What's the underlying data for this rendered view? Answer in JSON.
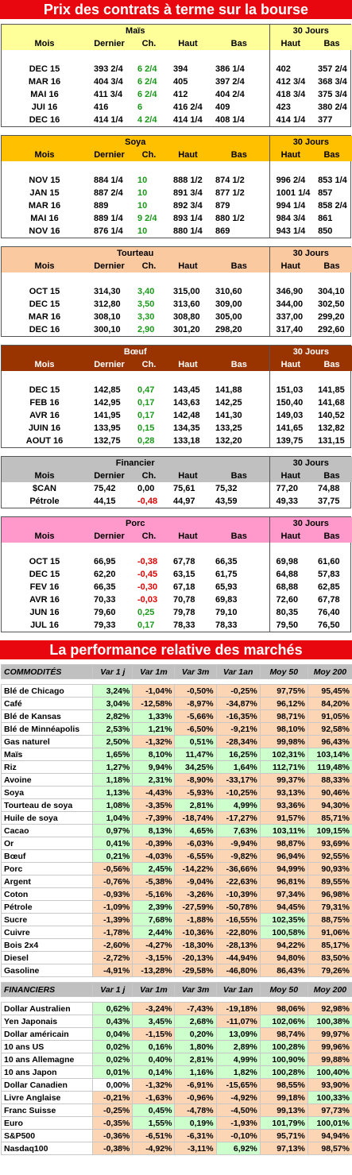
{
  "header": {
    "title": "Prix des contrats à terme sur la bourse"
  },
  "futures": [
    {
      "name": "Maïs",
      "period": "30 Jours",
      "columns": [
        "Mois",
        "Dernier",
        "Ch.",
        "Haut",
        "Bas",
        "Haut",
        "Bas"
      ],
      "rows": [
        [
          "DEC 15",
          "393 2/4",
          "6 2/4",
          "394",
          "386 1/4",
          "402",
          "357 2/4"
        ],
        [
          "MAR 16",
          "404 3/4",
          "6 2/4",
          "405",
          "397 2/4",
          "412 3/4",
          "368 3/4"
        ],
        [
          "MAI 16",
          "411 3/4",
          "6 2/4",
          "412",
          "404 2/4",
          "418 3/4",
          "375 3/4"
        ],
        [
          "JUI 16",
          "416",
          "6",
          "416 2/4",
          "409",
          "423",
          "380 2/4"
        ],
        [
          "DEC 16",
          "414 1/4",
          "4 2/4",
          "414 1/4",
          "408 1/4",
          "414 1/4",
          "377"
        ]
      ]
    },
    {
      "name": "Soya",
      "period": "30 Jours",
      "columns": [
        "Mois",
        "Dernier",
        "Ch.",
        "Haut",
        "Bas",
        "Haut",
        "Bas"
      ],
      "rows": [
        [
          "NOV 15",
          "884 1/4",
          "10",
          "888 1/2",
          "874 1/2",
          "996 2/4",
          "853 1/4"
        ],
        [
          "JAN 15",
          "887 2/4",
          "10",
          "891 3/4",
          "877 1/2",
          "1001 1/4",
          "857"
        ],
        [
          "MAR 16",
          "889",
          "10",
          "892 3/4",
          "879",
          "994 1/4",
          "858 2/4"
        ],
        [
          "MAI 16",
          "889 1/4",
          "9 2/4",
          "893 1/4",
          "880 1/2",
          "984 3/4",
          "861"
        ],
        [
          "NOV 16",
          "876 1/4",
          "10",
          "880 1/4",
          "869",
          "943 1/4",
          "850"
        ]
      ]
    },
    {
      "name": "Tourteau",
      "period": "30 Jours",
      "columns": [
        "Mois",
        "Dernier",
        "Ch.",
        "Haut",
        "Bas",
        "Haut",
        "Bas"
      ],
      "rows": [
        [
          "OCT 15",
          "314,30",
          "3,40",
          "315,00",
          "310,60",
          "346,90",
          "304,10"
        ],
        [
          "DEC 15",
          "312,80",
          "3,50",
          "313,60",
          "309,00",
          "344,00",
          "302,50"
        ],
        [
          "MAR 16",
          "308,10",
          "3,30",
          "308,80",
          "305,00",
          "337,00",
          "299,20"
        ],
        [
          "DEC 16",
          "300,10",
          "2,90",
          "301,20",
          "298,20",
          "317,40",
          "292,60"
        ]
      ]
    },
    {
      "name": "Bœuf",
      "period": "30 Jours",
      "columns": [
        "Mois",
        "Dernier",
        "Ch.",
        "Haut",
        "Bas",
        "Haut",
        "Bas"
      ],
      "rows": [
        [
          "DEC 15",
          "142,85",
          "0,47",
          "143,45",
          "141,88",
          "151,03",
          "141,85"
        ],
        [
          "FEB 16",
          "142,95",
          "0,17",
          "143,63",
          "142,25",
          "150,40",
          "141,68"
        ],
        [
          "AVR 16",
          "141,95",
          "0,17",
          "142,48",
          "141,30",
          "149,03",
          "140,52"
        ],
        [
          "JUIN 16",
          "133,95",
          "0,15",
          "134,35",
          "133,25",
          "141,65",
          "132,82"
        ],
        [
          "AOUT 16",
          "132,75",
          "0,28",
          "133,18",
          "132,20",
          "139,75",
          "131,15"
        ]
      ]
    },
    {
      "name": "Financier",
      "period": "30 Jours",
      "columns": [
        "Mois",
        "Dernier",
        "Ch.",
        "Haut",
        "Bas",
        "Haut",
        "Bas"
      ],
      "rows": [
        [
          "$CAN",
          "75,42",
          "0,00",
          "75,61",
          "75,32",
          "77,20",
          "74,88"
        ],
        [
          "Pétrole",
          "44,15",
          "-0,48",
          "44,97",
          "43,59",
          "49,33",
          "37,75"
        ]
      ]
    },
    {
      "name": "Porc",
      "period": "30 Jours",
      "columns": [
        "Mois",
        "Dernier",
        "Ch.",
        "Haut",
        "Bas",
        "Haut",
        "Bas"
      ],
      "rows": [
        [
          "OCT 15",
          "66,95",
          "-0,38",
          "67,78",
          "66,35",
          "69,98",
          "61,60"
        ],
        [
          "DEC 15",
          "62,20",
          "-0,45",
          "63,15",
          "61,75",
          "64,88",
          "57,83"
        ],
        [
          "FEV 16",
          "66,35",
          "-0,30",
          "67,18",
          "65,93",
          "68,88",
          "62,85"
        ],
        [
          "AVR 16",
          "70,33",
          "-0,03",
          "70,78",
          "69,83",
          "72,60",
          "67,78"
        ],
        [
          "JUN 16",
          "79,60",
          "0,25",
          "79,78",
          "79,10",
          "80,35",
          "76,40"
        ],
        [
          "JUL 16",
          "79,33",
          "0,17",
          "78,33",
          "78,33",
          "79,50",
          "76,50"
        ]
      ]
    }
  ],
  "performance": {
    "title": "La performance relative des marchés",
    "groups": [
      {
        "name": "COMMODITÉS",
        "columns": [
          "Var 1 j",
          "Var 1m",
          "Var 3m",
          "Var 1an",
          "Moy 50",
          "Moy 200"
        ],
        "rows": [
          [
            "Blé de Chicago",
            "3,24%",
            "-1,04%",
            "-0,50%",
            "-0,25%",
            "97,75%",
            "95,45%"
          ],
          [
            "Café",
            "3,04%",
            "-12,58%",
            "-8,97%",
            "-34,87%",
            "96,12%",
            "84,20%"
          ],
          [
            "Blé de Kansas",
            "2,82%",
            "1,33%",
            "-5,66%",
            "-16,35%",
            "98,71%",
            "91,05%"
          ],
          [
            "Blé de Minnéapolis",
            "2,53%",
            "1,21%",
            "-6,50%",
            "-9,21%",
            "98,10%",
            "92,58%"
          ],
          [
            "Gas naturel",
            "2,50%",
            "-1,32%",
            "0,51%",
            "-28,34%",
            "99,98%",
            "96,43%"
          ],
          [
            "Maïs",
            "1,65%",
            "8,10%",
            "11,47%",
            "16,25%",
            "102,31%",
            "103,14%"
          ],
          [
            "Riz",
            "1,27%",
            "9,94%",
            "34,25%",
            "1,64%",
            "112,71%",
            "119,48%"
          ],
          [
            "Avoine",
            "1,18%",
            "2,31%",
            "-8,90%",
            "-33,17%",
            "99,37%",
            "88,33%"
          ],
          [
            "Soya",
            "1,13%",
            "-4,43%",
            "-5,93%",
            "-10,25%",
            "93,13%",
            "90,46%"
          ],
          [
            "Tourteau de soya",
            "1,08%",
            "-3,35%",
            "2,81%",
            "4,99%",
            "93,36%",
            "94,30%"
          ],
          [
            "Huile de soya",
            "1,04%",
            "-7,39%",
            "-18,74%",
            "-17,27%",
            "91,57%",
            "85,71%"
          ],
          [
            "Cacao",
            "0,97%",
            "8,13%",
            "4,65%",
            "7,63%",
            "103,11%",
            "109,15%"
          ],
          [
            "Or",
            "0,41%",
            "-0,39%",
            "-6,03%",
            "-9,94%",
            "98,87%",
            "93,69%"
          ],
          [
            "Bœuf",
            "0,21%",
            "-4,03%",
            "-6,55%",
            "-9,82%",
            "96,94%",
            "92,55%"
          ],
          [
            "Porc",
            "-0,56%",
            "2,45%",
            "-14,22%",
            "-36,66%",
            "94,99%",
            "90,93%"
          ],
          [
            "Argent",
            "-0,76%",
            "-5,38%",
            "-9,04%",
            "-22,63%",
            "96,81%",
            "89,55%"
          ],
          [
            "Coton",
            "-0,93%",
            "-5,16%",
            "-3,26%",
            "-10,39%",
            "97,34%",
            "96,98%"
          ],
          [
            "Pétrole",
            "-1,09%",
            "2,39%",
            "-27,59%",
            "-50,78%",
            "94,45%",
            "79,31%"
          ],
          [
            "Sucre",
            "-1,39%",
            "7,68%",
            "-1,88%",
            "-16,55%",
            "102,35%",
            "88,75%"
          ],
          [
            "Cuivre",
            "-1,78%",
            "2,44%",
            "-10,36%",
            "-22,80%",
            "100,58%",
            "91,06%"
          ],
          [
            "Bois 2x4",
            "-2,60%",
            "-4,27%",
            "-18,30%",
            "-28,13%",
            "94,22%",
            "85,17%"
          ],
          [
            "Diesel",
            "-2,72%",
            "-3,15%",
            "-20,13%",
            "-44,94%",
            "94,80%",
            "83,50%"
          ],
          [
            "Gasoline",
            "-4,91%",
            "-13,28%",
            "-29,58%",
            "-46,80%",
            "86,43%",
            "79,26%"
          ]
        ]
      },
      {
        "name": "FINANCIERS",
        "columns": [
          "Var 1 j",
          "Var 1m",
          "Var 3m",
          "Var 1an",
          "Moy 50",
          "Moy 200"
        ],
        "rows": [
          [
            "Dollar Australien",
            "0,62%",
            "-3,24%",
            "-7,43%",
            "-19,18%",
            "98,06%",
            "92,98%"
          ],
          [
            "Yen Japonais",
            "0,43%",
            "3,45%",
            "2,68%",
            "-11,07%",
            "102,06%",
            "100,38%"
          ],
          [
            "Dollar américain",
            "0,04%",
            "-1,15%",
            "0,20%",
            "13,09%",
            "98,74%",
            "99,97%"
          ],
          [
            "10 ans US",
            "0,02%",
            "0,16%",
            "1,80%",
            "2,89%",
            "100,28%",
            "99,96%"
          ],
          [
            "10 ans Allemagne",
            "0,02%",
            "0,40%",
            "2,81%",
            "4,99%",
            "100,90%",
            "99,88%"
          ],
          [
            "10 ans Japon",
            "0,01%",
            "0,14%",
            "1,16%",
            "1,82%",
            "100,28%",
            "100,40%"
          ],
          [
            "Dollar Canadien",
            "0,00%",
            "-1,32%",
            "-6,91%",
            "-15,65%",
            "98,55%",
            "93,90%"
          ],
          [
            "Livre Anglaise",
            "-0,21%",
            "-1,63%",
            "-0,96%",
            "-4,92%",
            "99,18%",
            "100,33%"
          ],
          [
            "Franc Suisse",
            "-0,25%",
            "0,45%",
            "-4,78%",
            "-4,50%",
            "99,13%",
            "97,73%"
          ],
          [
            "Euro",
            "-0,35%",
            "1,55%",
            "0,19%",
            "-1,93%",
            "101,79%",
            "100,01%"
          ],
          [
            "S&P500",
            "-0,36%",
            "-6,51%",
            "-6,31%",
            "-0,10%",
            "95,71%",
            "94,94%"
          ],
          [
            "Nasdaq100",
            "-0,38%",
            "-4,92%",
            "-3,11%",
            "6,92%",
            "97,13%",
            "98,57%"
          ]
        ]
      }
    ]
  }
}
